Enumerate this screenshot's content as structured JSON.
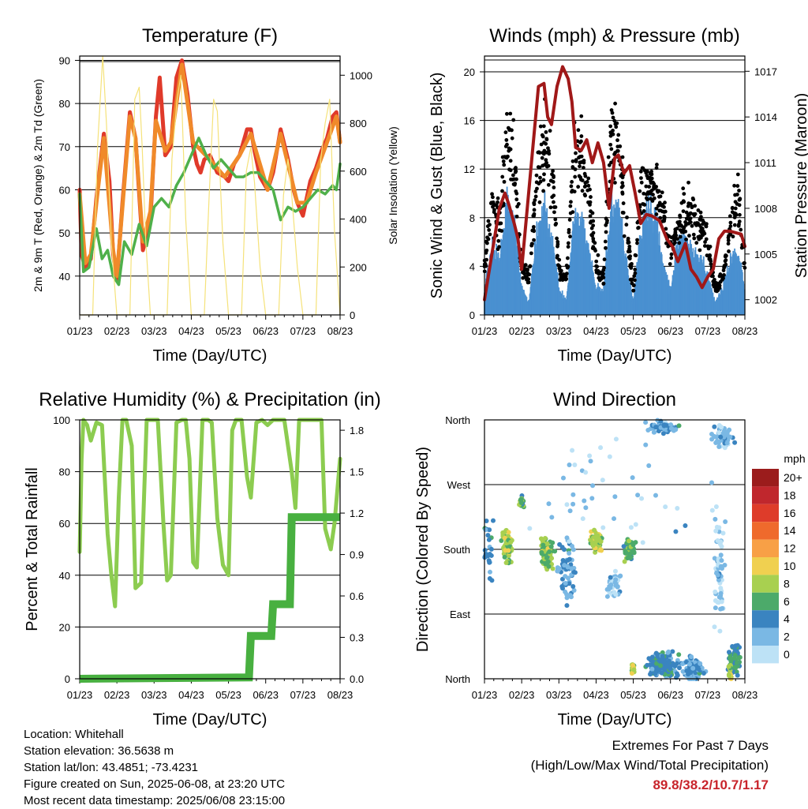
{
  "colors": {
    "temp_2m": "#e03a2a",
    "temp_9m": "#f08a2a",
    "dewpoint": "#4fb04a",
    "solar": "#f5e27a",
    "wind": "#4a90d0",
    "gust": "#000000",
    "pressure": "#a01818",
    "rh": "#8ccc50",
    "rain": "#48b040",
    "extremes": "#c8242b"
  },
  "chart_data": [
    {
      "id": "temperature",
      "type": "line",
      "title": "Temperature (F)",
      "xlabel": "Time (Day/UTC)",
      "ylabel": "2m & 9m T (Red, Orange) & 2m Td (Green)",
      "ylabel_right": "Solar Insolation (Yellow)",
      "x_ticks": [
        "01/23",
        "02/23",
        "03/23",
        "04/23",
        "05/23",
        "06/23",
        "07/23",
        "08/23"
      ],
      "xlim": [
        0,
        7
      ],
      "ylim": [
        31,
        91
      ],
      "y_ticks": [
        40,
        50,
        60,
        70,
        80,
        90
      ],
      "ylim_right": [
        0,
        1080
      ],
      "y_ticks_right": [
        0,
        200,
        400,
        600,
        800,
        1000
      ],
      "grid": "horizontal",
      "series": [
        {
          "key": "t2m",
          "color_key": "temp_2m",
          "axis": "left",
          "x": [
            0,
            0.05,
            0.15,
            0.3,
            0.45,
            0.65,
            0.8,
            0.9,
            1.0,
            1.15,
            1.35,
            1.5,
            1.7,
            1.9,
            2.05,
            2.15,
            2.3,
            2.45,
            2.6,
            2.75,
            2.9,
            3.05,
            3.15,
            3.25,
            3.35,
            3.5,
            3.7,
            3.9,
            4.0,
            4.15,
            4.3,
            4.5,
            4.6,
            4.7,
            4.85,
            5.05,
            5.2,
            5.4,
            5.6,
            5.75,
            5.85,
            6.0,
            6.1,
            6.2,
            6.35,
            6.5,
            6.65,
            6.8,
            6.9,
            7.0
          ],
          "y": [
            60,
            45,
            42,
            44,
            58,
            73,
            62,
            45,
            39,
            57,
            78,
            72,
            46,
            53,
            77,
            86,
            68,
            70,
            86,
            90,
            82,
            70,
            66,
            64,
            67,
            68,
            64,
            63,
            62,
            66,
            68,
            74,
            74,
            69,
            63,
            60,
            64,
            74,
            67,
            60,
            57,
            54,
            58,
            62,
            65,
            69,
            72,
            77,
            78,
            71
          ]
        },
        {
          "key": "t9m",
          "color_key": "temp_9m",
          "axis": "left",
          "x": [
            0,
            0.15,
            0.3,
            0.45,
            0.65,
            0.9,
            1.0,
            1.15,
            1.35,
            1.5,
            1.7,
            1.9,
            2.05,
            2.3,
            2.45,
            2.75,
            3.05,
            3.5,
            3.9,
            4.3,
            4.6,
            5.05,
            5.4,
            5.85,
            6.1,
            6.35,
            6.65,
            6.9,
            7.0
          ],
          "y": [
            59,
            43,
            45,
            57,
            72,
            46,
            40,
            56,
            77,
            72,
            48,
            55,
            76,
            69,
            71,
            89,
            71,
            67,
            63,
            68,
            73,
            60,
            73,
            57,
            57,
            64,
            71,
            77,
            71
          ]
        },
        {
          "key": "td",
          "color_key": "dewpoint",
          "axis": "left",
          "x": [
            0,
            0.1,
            0.25,
            0.45,
            0.6,
            0.75,
            0.9,
            1.05,
            1.2,
            1.4,
            1.6,
            1.8,
            2.0,
            2.2,
            2.4,
            2.6,
            2.8,
            3.0,
            3.2,
            3.4,
            3.6,
            3.8,
            4.0,
            4.2,
            4.4,
            4.6,
            4.8,
            5.0,
            5.2,
            5.4,
            5.6,
            5.8,
            6.0,
            6.2,
            6.4,
            6.6,
            6.8,
            6.9,
            7.0
          ],
          "y": [
            59,
            41,
            42,
            51,
            44,
            46,
            40,
            38,
            48,
            45,
            52,
            47,
            56,
            58,
            56,
            61,
            64,
            68,
            72,
            68,
            65,
            67,
            65,
            63,
            63,
            64,
            64,
            62,
            60,
            53,
            56,
            55,
            56,
            58,
            60,
            59,
            61,
            60,
            66
          ]
        },
        {
          "key": "solar",
          "color_key": "solar",
          "axis": "right",
          "style": "thin",
          "x": [
            0,
            0.35,
            0.48,
            0.62,
            0.72,
            0.85,
            1.0,
            1.35,
            1.48,
            1.6,
            1.68,
            1.78,
            1.9,
            2.35,
            2.48,
            2.62,
            2.72,
            2.85,
            3.0,
            3.35,
            3.48,
            3.6,
            3.7,
            3.85,
            4.0,
            4.35,
            4.48,
            4.6,
            4.7,
            4.85,
            5.0,
            5.35,
            5.48,
            5.6,
            5.7,
            5.85,
            6.0,
            6.35,
            6.48,
            6.6,
            6.72,
            6.85,
            7.0
          ],
          "y": [
            0,
            0,
            700,
            1080,
            800,
            300,
            0,
            0,
            900,
            950,
            700,
            300,
            0,
            0,
            650,
            900,
            1000,
            400,
            0,
            0,
            500,
            900,
            850,
            300,
            0,
            0,
            600,
            700,
            550,
            200,
            0,
            0,
            500,
            650,
            500,
            200,
            0,
            0,
            650,
            800,
            900,
            350,
            0
          ]
        }
      ]
    },
    {
      "id": "winds",
      "type": "line",
      "title": "Winds (mph) & Pressure (mb)",
      "xlabel": "Time (Day/UTC)",
      "ylabel": "Sonic Wind & Gust (Blue, Black)",
      "ylabel_right": "Station Pressure (Maroon)",
      "x_ticks": [
        "01/23",
        "02/23",
        "03/23",
        "04/23",
        "05/23",
        "06/23",
        "07/23",
        "08/23"
      ],
      "xlim": [
        0,
        7
      ],
      "ylim": [
        0,
        21.3
      ],
      "y_ticks": [
        0,
        4,
        8,
        12,
        16,
        20
      ],
      "ylim_right": [
        1001,
        1018
      ],
      "y_ticks_right": [
        1002,
        1005,
        1008,
        1011,
        1014,
        1017
      ],
      "grid": "horizontal",
      "series": [
        {
          "key": "wind",
          "color_key": "wind",
          "axis": "left",
          "style": "band",
          "x": [
            0,
            0.2,
            0.4,
            0.6,
            0.8,
            1.0,
            1.2,
            1.4,
            1.6,
            1.8,
            2.0,
            2.2,
            2.4,
            2.6,
            2.8,
            3.0,
            3.2,
            3.4,
            3.6,
            3.8,
            4.0,
            4.2,
            4.4,
            4.6,
            4.8,
            5.0,
            5.2,
            5.4,
            5.6,
            5.8,
            6.0,
            6.2,
            6.4,
            6.6,
            6.8,
            7.0
          ],
          "y": [
            2,
            5,
            4,
            8,
            7,
            2,
            1,
            6,
            8,
            6,
            2,
            1,
            7,
            7,
            5,
            2,
            2,
            8,
            8,
            4,
            1,
            6,
            8,
            7,
            4,
            2,
            5,
            6,
            5,
            4,
            3,
            1,
            2,
            4,
            5,
            2
          ]
        },
        {
          "key": "gust",
          "color_key": "gust",
          "axis": "left",
          "style": "dots",
          "x": [
            0,
            0.2,
            0.4,
            0.6,
            0.8,
            1.0,
            1.2,
            1.4,
            1.6,
            1.8,
            2.0,
            2.2,
            2.4,
            2.6,
            2.8,
            3.0,
            3.2,
            3.4,
            3.6,
            3.8,
            4.0,
            4.2,
            4.4,
            4.6,
            4.8,
            5.0,
            5.2,
            5.4,
            5.6,
            5.8,
            6.0,
            6.2,
            6.4,
            6.6,
            6.8,
            7.0
          ],
          "y": [
            4,
            9,
            7,
            14,
            12,
            4,
            3,
            11,
            14,
            12,
            4,
            3,
            12,
            13,
            10,
            4,
            3,
            15,
            14,
            8,
            2,
            10,
            11,
            10,
            8,
            5,
            7,
            9,
            8,
            7,
            6,
            2,
            3,
            7,
            10,
            4
          ]
        },
        {
          "key": "pressure",
          "color_key": "pressure",
          "axis": "right",
          "x": [
            0,
            0.2,
            0.4,
            0.55,
            0.65,
            0.8,
            0.9,
            1.0,
            1.15,
            1.3,
            1.45,
            1.6,
            1.7,
            1.8,
            1.95,
            2.1,
            2.25,
            2.35,
            2.45,
            2.6,
            2.75,
            2.9,
            3.05,
            3.2,
            3.35,
            3.5,
            3.6,
            3.75,
            3.9,
            4.05,
            4.2,
            4.35,
            4.5,
            4.7,
            4.9,
            5.05,
            5.2,
            5.4,
            5.55,
            5.7,
            5.85,
            6.0,
            6.15,
            6.3,
            6.45,
            6.6,
            6.75,
            6.9,
            7.0
          ],
          "y": [
            1002,
            1005,
            1008,
            1009,
            1008.3,
            1007,
            1006,
            1004,
            1008,
            1012,
            1016,
            1016.2,
            1014,
            1013.5,
            1016,
            1017.3,
            1016.5,
            1015,
            1012,
            1011.8,
            1012.5,
            1011,
            1012.3,
            1011,
            1008,
            1011.3,
            1011.5,
            1010.3,
            1010.8,
            1009,
            1007,
            1007.6,
            1007.5,
            1007.2,
            1006,
            1005.5,
            1004.5,
            1005.7,
            1004,
            1003.5,
            1002.8,
            1003.5,
            1004,
            1006,
            1006.5,
            1006.5,
            1006.4,
            1006.3,
            1005.5
          ]
        }
      ]
    },
    {
      "id": "humidity",
      "type": "line",
      "title": "Relative Humidity (%) & Precipitation (in)",
      "xlabel": "Time (Day/UTC)",
      "ylabel": "Percent & Total Rainfall",
      "x_ticks": [
        "01/23",
        "02/23",
        "03/23",
        "04/23",
        "05/23",
        "06/23",
        "07/23",
        "08/23"
      ],
      "xlim": [
        0,
        7
      ],
      "ylim": [
        0,
        100
      ],
      "y_ticks": [
        0,
        20,
        40,
        60,
        80,
        100
      ],
      "ylim_right": [
        0,
        1.875
      ],
      "y_ticks_right": [
        "0.0",
        "0.3",
        "0.6",
        "0.9",
        "1.2",
        "1.5",
        "1.8"
      ],
      "grid": "horizontal",
      "series": [
        {
          "key": "rh",
          "color_key": "rh",
          "axis": "left",
          "x": [
            0,
            0.05,
            0.1,
            0.2,
            0.3,
            0.45,
            0.6,
            0.75,
            0.85,
            0.95,
            1.05,
            1.15,
            1.25,
            1.4,
            1.5,
            1.65,
            1.8,
            1.95,
            2.1,
            2.25,
            2.35,
            2.45,
            2.6,
            2.75,
            2.85,
            2.95,
            3.05,
            3.15,
            3.3,
            3.45,
            3.55,
            3.7,
            3.85,
            4.0,
            4.1,
            4.2,
            4.35,
            4.5,
            4.6,
            4.75,
            4.9,
            5.05,
            5.2,
            5.35,
            5.5,
            5.7,
            5.8,
            5.9,
            6.1,
            6.3,
            6.5,
            6.6,
            6.75,
            6.85,
            7.0
          ],
          "y": [
            49,
            85,
            100,
            98,
            92,
            99,
            98,
            56,
            40,
            28,
            70,
            100,
            100,
            90,
            35,
            37,
            100,
            100,
            100,
            60,
            38,
            40,
            99,
            100,
            100,
            85,
            45,
            43,
            100,
            100,
            99,
            62,
            44,
            40,
            96,
            100,
            100,
            78,
            70,
            99,
            100,
            98,
            100,
            100,
            100,
            80,
            66,
            100,
            100,
            100,
            100,
            58,
            50,
            60,
            85
          ]
        },
        {
          "key": "rain",
          "color_key": "rain",
          "axis": "right",
          "style": "step",
          "x": [
            0,
            4.55,
            4.6,
            5.15,
            5.2,
            5.65,
            5.7,
            7.0
          ],
          "y": [
            0,
            0.01,
            0.31,
            0.31,
            0.54,
            0.54,
            1.17,
            1.17
          ]
        }
      ]
    },
    {
      "id": "direction",
      "type": "scatter",
      "title": "Wind Direction",
      "xlabel": "Time (Day/UTC)",
      "ylabel": "Direction (Colored By Speed)",
      "x_ticks": [
        "01/23",
        "02/23",
        "03/23",
        "04/23",
        "05/23",
        "06/23",
        "07/23",
        "08/23"
      ],
      "xlim": [
        0,
        7
      ],
      "ylim": [
        0,
        360
      ],
      "y_ticks": [
        "North",
        "East",
        "South",
        "West",
        "North"
      ],
      "grid": "horizontal",
      "colorbar": {
        "title": "mph",
        "labels": [
          "20+",
          "18",
          "16",
          "14",
          "12",
          "10",
          "8",
          "6",
          "4",
          "2",
          "0"
        ],
        "colors": [
          "#9b1c1c",
          "#c0272d",
          "#de3c2a",
          "#ef6a2c",
          "#f8a046",
          "#f0d050",
          "#a8d050",
          "#4caa6a",
          "#3a84c0",
          "#7ab8e4",
          "#bde2f6"
        ]
      },
      "clusters": [
        {
          "x": 0.05,
          "y": 180,
          "n": 40,
          "dx": 0.3,
          "dy": 70,
          "speed": 4
        },
        {
          "x": 0.6,
          "y": 185,
          "n": 90,
          "dx": 0.2,
          "dy": 30,
          "speed": 8
        },
        {
          "x": 1.0,
          "y": 245,
          "n": 25,
          "dx": 0.08,
          "dy": 12,
          "speed": 6
        },
        {
          "x": 1.7,
          "y": 175,
          "n": 90,
          "dx": 0.25,
          "dy": 25,
          "speed": 7
        },
        {
          "x": 2.2,
          "y": 150,
          "n": 60,
          "dx": 0.3,
          "dy": 60,
          "speed": 3
        },
        {
          "x": 3.0,
          "y": 190,
          "n": 90,
          "dx": 0.2,
          "dy": 20,
          "speed": 8
        },
        {
          "x": 3.5,
          "y": 130,
          "n": 40,
          "dx": 0.25,
          "dy": 30,
          "speed": 1
        },
        {
          "x": 3.9,
          "y": 180,
          "n": 70,
          "dx": 0.2,
          "dy": 20,
          "speed": 6
        },
        {
          "x": 4.0,
          "y": 15,
          "n": 20,
          "dx": 0.05,
          "dy": 12,
          "speed": 8
        },
        {
          "x": 4.8,
          "y": 20,
          "n": 140,
          "dx": 0.6,
          "dy": 25,
          "speed": 4
        },
        {
          "x": 5.6,
          "y": 15,
          "n": 90,
          "dx": 0.4,
          "dy": 25,
          "speed": 3
        },
        {
          "x": 6.7,
          "y": 25,
          "n": 60,
          "dx": 0.25,
          "dy": 30,
          "speed": 5
        },
        {
          "x": 6.6,
          "y": 10,
          "n": 15,
          "dx": 0.05,
          "dy": 15,
          "speed": 8
        },
        {
          "x": 4.8,
          "y": 350,
          "n": 60,
          "dx": 0.6,
          "dy": 12,
          "speed": 3
        },
        {
          "x": 6.4,
          "y": 335,
          "n": 50,
          "dx": 0.4,
          "dy": 22,
          "speed": 2
        },
        {
          "x": 3.5,
          "y": 250,
          "n": 45,
          "dx": 3.4,
          "dy": 110,
          "speed": 1
        },
        {
          "x": 6.3,
          "y": 150,
          "n": 60,
          "dx": 0.2,
          "dy": 120,
          "speed": 1
        }
      ]
    }
  ],
  "info": {
    "location": "Location: Whitehall",
    "elevation": "Station elevation: 36.5638 m",
    "latlon": "Station lat/lon: 43.4851; -73.4231",
    "created": "Figure created on Sun, 2025-06-08, at 23:20 UTC",
    "recent": "Most recent data timestamp: 2025/06/08 23:15:00"
  },
  "extremes": {
    "line1": "Extremes For Past 7 Days",
    "line2": "(High/Low/Max Wind/Total Precipitation)",
    "values": "89.8/38.2/10.7/1.17"
  }
}
